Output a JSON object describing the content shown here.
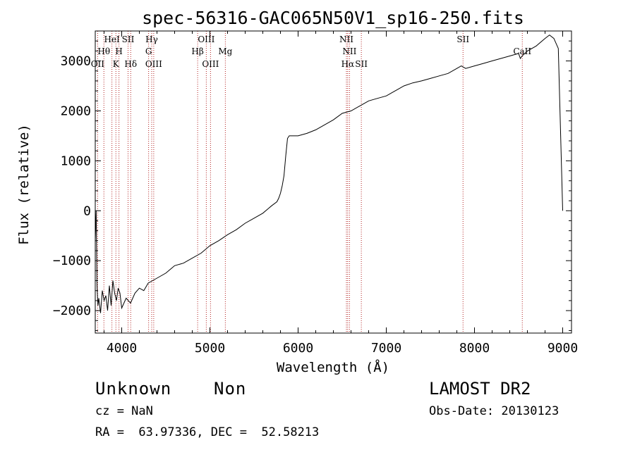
{
  "chart_data": {
    "type": "line",
    "title": "spec-56316-GAC065N50V1_sp16-250.fits",
    "xlabel": "Wavelength (Å)",
    "ylabel": "Flux (relative)",
    "xlim": [
      3700,
      9100
    ],
    "ylim": [
      -2450,
      3600
    ],
    "xticks": [
      4000,
      5000,
      6000,
      7000,
      8000,
      9000
    ],
    "yticks": [
      -2000,
      -1000,
      0,
      1000,
      2000,
      3000
    ],
    "line_color": "#000000",
    "marker_color": "#b22222",
    "grid": false,
    "series": [
      {
        "x": [
          3700,
          3710,
          3720,
          3730,
          3740,
          3760,
          3780,
          3800,
          3820,
          3840,
          3860,
          3880,
          3900,
          3920,
          3940,
          3960,
          3980,
          4000,
          4050,
          4100,
          4150,
          4200,
          4250,
          4300,
          4350,
          4400,
          4500,
          4600,
          4700,
          4800,
          4900,
          5000,
          5100,
          5200,
          5300,
          5400,
          5500,
          5600,
          5700,
          5760,
          5780,
          5800,
          5820,
          5840,
          5860,
          5880,
          5900,
          6000,
          6100,
          6200,
          6300,
          6400,
          6500,
          6560,
          6600,
          6700,
          6800,
          6900,
          7000,
          7100,
          7200,
          7300,
          7400,
          7500,
          7600,
          7700,
          7800,
          7850,
          7900,
          8000,
          8100,
          8200,
          8300,
          8400,
          8500,
          8520,
          8540,
          8600,
          8700,
          8800,
          8850,
          8900,
          8950,
          9000
        ],
        "y": [
          -600,
          0,
          -1500,
          -1900,
          -1750,
          -2050,
          -1600,
          -1800,
          -1700,
          -2000,
          -1500,
          -1900,
          -1400,
          -1650,
          -1800,
          -1550,
          -1650,
          -1950,
          -1750,
          -1850,
          -1650,
          -1550,
          -1600,
          -1450,
          -1400,
          -1350,
          -1250,
          -1100,
          -1050,
          -950,
          -850,
          -700,
          -600,
          -480,
          -380,
          -250,
          -150,
          -50,
          100,
          180,
          250,
          350,
          500,
          700,
          1100,
          1450,
          1500,
          1500,
          1550,
          1620,
          1720,
          1820,
          1950,
          1980,
          2000,
          2100,
          2200,
          2250,
          2300,
          2400,
          2500,
          2560,
          2600,
          2650,
          2700,
          2750,
          2850,
          2900,
          2850,
          2900,
          2950,
          3000,
          3050,
          3100,
          3150,
          3050,
          3100,
          3200,
          3300,
          3450,
          3520,
          3450,
          3250,
          0
        ]
      }
    ],
    "lines": [
      {
        "name": "OII",
        "wl": 3727,
        "row": 2
      },
      {
        "name": "Hθ",
        "wl": 3798,
        "row": 1
      },
      {
        "name": "HeI",
        "wl": 3889,
        "row": 0
      },
      {
        "name": "K",
        "wl": 3934,
        "row": 2
      },
      {
        "name": "H",
        "wl": 3969,
        "row": 1
      },
      {
        "name": "SII",
        "wl": 4072,
        "row": 0
      },
      {
        "name": "Hδ",
        "wl": 4102,
        "row": 2
      },
      {
        "name": "Hγ",
        "wl": 4340,
        "row": 0
      },
      {
        "name": "G",
        "wl": 4305,
        "row": 1
      },
      {
        "name": "OIII",
        "wl": 4363,
        "row": 2
      },
      {
        "name": "Hβ",
        "wl": 4861,
        "row": 1
      },
      {
        "name": "OIII",
        "wl": 4959,
        "row": 0
      },
      {
        "name": "OIII",
        "wl": 5007,
        "row": 2
      },
      {
        "name": "Mg",
        "wl": 5175,
        "row": 1
      },
      {
        "name": "NII",
        "wl": 6548,
        "row": 0
      },
      {
        "name": "Hα",
        "wl": 6563,
        "row": 2
      },
      {
        "name": "NII",
        "wl": 6583,
        "row": 1
      },
      {
        "name": "SII",
        "wl": 6717,
        "row": 2
      },
      {
        "name": "SII",
        "wl": 7870,
        "row": 0
      },
      {
        "name": "CaII",
        "wl": 8542,
        "row": 1
      }
    ]
  },
  "footer": {
    "object_class": "Unknown",
    "object_subclass": "Non",
    "survey": "LAMOST DR2",
    "cz": "cz = NaN",
    "obs_date": "Obs-Date: 20130123",
    "radec": "RA =  63.97336, DEC =  52.58213"
  }
}
